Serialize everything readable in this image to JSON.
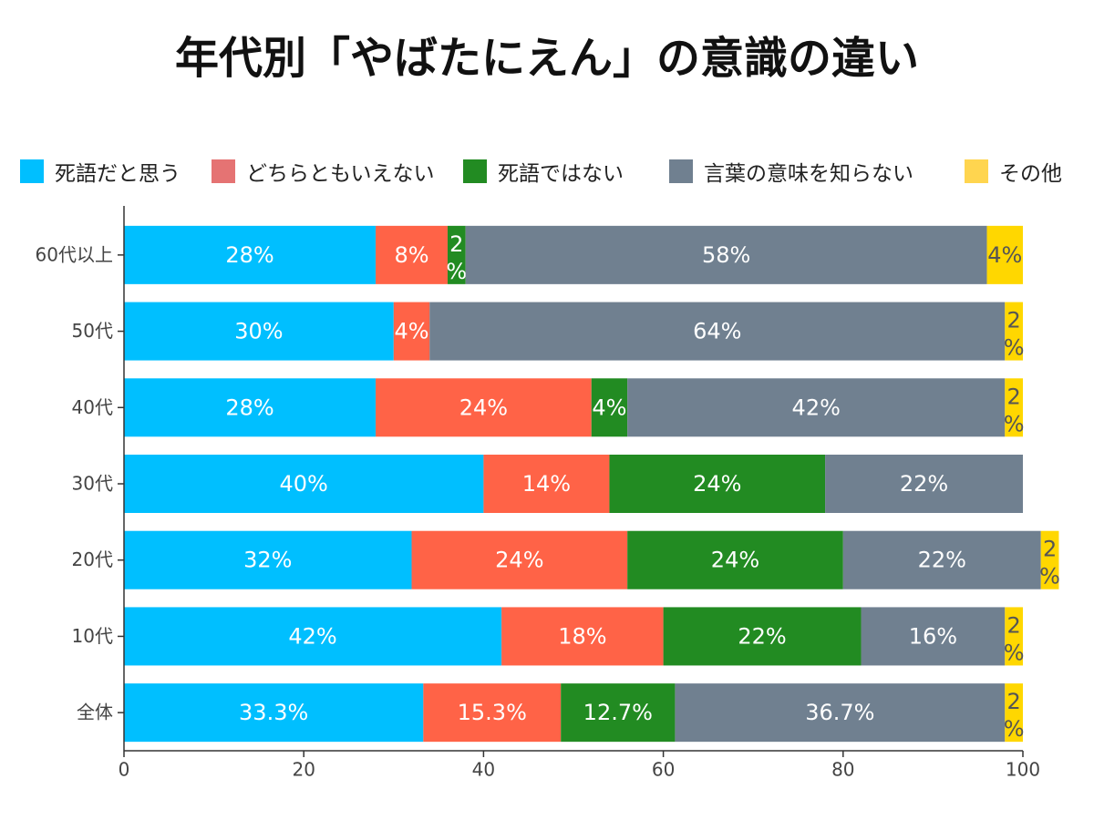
{
  "chart_data": {
    "type": "bar",
    "orientation": "horizontal",
    "stacked": true,
    "title": "年代別「やばたにえん」の意識の違い",
    "categories": [
      "60代以上",
      "50代",
      "40代",
      "30代",
      "20代",
      "10代",
      "全体"
    ],
    "series": [
      {
        "name": "死語だと思う",
        "color": "#00BFFF",
        "label_color": "#ffffff",
        "values": [
          28,
          30,
          28,
          40,
          32,
          42,
          33.3
        ],
        "labels": [
          "28%",
          "30%",
          "28%",
          "40%",
          "32%",
          "42%",
          "33.3%"
        ]
      },
      {
        "name": "どちらともいえない",
        "color": "#FF6347",
        "label_color": "#ffffff",
        "values": [
          8,
          4,
          24,
          14,
          24,
          18,
          15.3
        ],
        "labels": [
          "8%",
          "4%",
          "24%",
          "14%",
          "24%",
          "18%",
          "15.3%"
        ]
      },
      {
        "name": "死語ではない",
        "color": "#228B22",
        "label_color": "#ffffff",
        "values": [
          2,
          0,
          4,
          24,
          24,
          22,
          12.7
        ],
        "labels": [
          "2%",
          "",
          "4%",
          "24%",
          "24%",
          "22%",
          "12.7%"
        ]
      },
      {
        "name": "言葉の意味を知らない",
        "color": "#708090",
        "label_color": "#ffffff",
        "values": [
          58,
          64,
          42,
          22,
          22,
          16,
          36.7
        ],
        "labels": [
          "58%",
          "64%",
          "42%",
          "22%",
          "22%",
          "16%",
          "36.7%"
        ]
      },
      {
        "name": "その他",
        "color": "#FFD700",
        "label_color": "#555555",
        "values": [
          4,
          2,
          2,
          0,
          2,
          2,
          2
        ],
        "labels": [
          "4%",
          "2%",
          "2%",
          "",
          "2%",
          "2%",
          "2%"
        ]
      }
    ],
    "legend_colors": [
      "#00BFFF",
      "#E57373",
      "#228B22",
      "#708090",
      "#FFD54F"
    ],
    "xlim": [
      0,
      100
    ],
    "xticks": [
      "0",
      "20",
      "40",
      "60",
      "80",
      "100"
    ],
    "xlabel": "",
    "ylabel": "",
    "grid": false,
    "legend_position": "top"
  }
}
